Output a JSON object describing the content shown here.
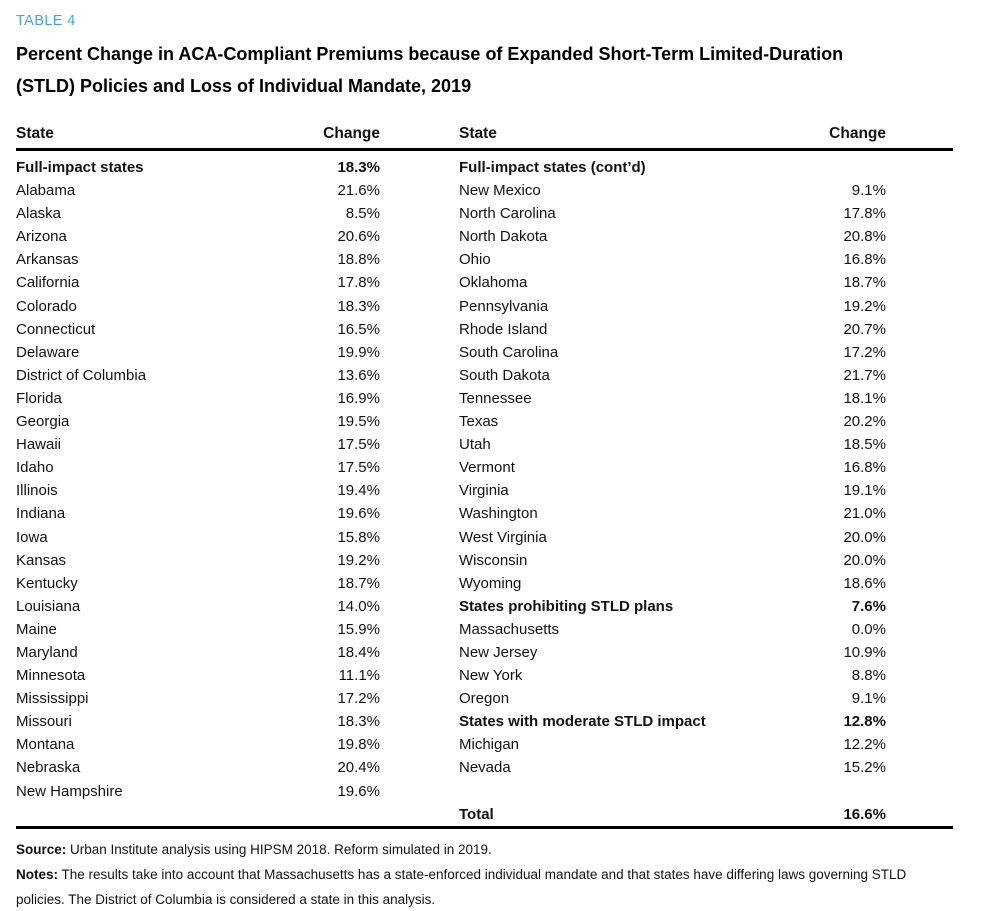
{
  "header": {
    "table_label": "TABLE 4",
    "title_line1": "Percent Change in ACA-Compliant Premiums because of Expanded Short-Term Limited-Duration",
    "title_line2": "(STLD) Policies and Loss of Individual Mandate, 2019",
    "accent_color": "#46a5d8"
  },
  "table": {
    "columns": {
      "state": "State",
      "change": "Change"
    },
    "left_rows": [
      {
        "state": "Full-impact states",
        "change": "18.3%",
        "bold": true
      },
      {
        "state": "Alabama",
        "change": "21.6%",
        "bold": false
      },
      {
        "state": "Alaska",
        "change": "8.5%",
        "bold": false
      },
      {
        "state": "Arizona",
        "change": "20.6%",
        "bold": false
      },
      {
        "state": "Arkansas",
        "change": "18.8%",
        "bold": false
      },
      {
        "state": "California",
        "change": "17.8%",
        "bold": false
      },
      {
        "state": "Colorado",
        "change": "18.3%",
        "bold": false
      },
      {
        "state": "Connecticut",
        "change": "16.5%",
        "bold": false
      },
      {
        "state": "Delaware",
        "change": "19.9%",
        "bold": false
      },
      {
        "state": "District of Columbia",
        "change": "13.6%",
        "bold": false
      },
      {
        "state": "Florida",
        "change": "16.9%",
        "bold": false
      },
      {
        "state": "Georgia",
        "change": "19.5%",
        "bold": false
      },
      {
        "state": "Hawaii",
        "change": "17.5%",
        "bold": false
      },
      {
        "state": "Idaho",
        "change": "17.5%",
        "bold": false
      },
      {
        "state": "Illinois",
        "change": "19.4%",
        "bold": false
      },
      {
        "state": "Indiana",
        "change": "19.6%",
        "bold": false
      },
      {
        "state": "Iowa",
        "change": "15.8%",
        "bold": false
      },
      {
        "state": "Kansas",
        "change": "19.2%",
        "bold": false
      },
      {
        "state": "Kentucky",
        "change": "18.7%",
        "bold": false
      },
      {
        "state": "Louisiana",
        "change": "14.0%",
        "bold": false
      },
      {
        "state": "Maine",
        "change": "15.9%",
        "bold": false
      },
      {
        "state": "Maryland",
        "change": "18.4%",
        "bold": false
      },
      {
        "state": "Minnesota",
        "change": "11.1%",
        "bold": false
      },
      {
        "state": "Mississippi",
        "change": "17.2%",
        "bold": false
      },
      {
        "state": "Missouri",
        "change": "18.3%",
        "bold": false
      },
      {
        "state": "Montana",
        "change": "19.8%",
        "bold": false
      },
      {
        "state": "Nebraska",
        "change": "20.4%",
        "bold": false
      },
      {
        "state": "New Hampshire",
        "change": "19.6%",
        "bold": false
      }
    ],
    "right_rows": [
      {
        "state": "Full-impact states (cont’d)",
        "change": "",
        "bold": true
      },
      {
        "state": "New Mexico",
        "change": "9.1%",
        "bold": false
      },
      {
        "state": "North Carolina",
        "change": "17.8%",
        "bold": false
      },
      {
        "state": "North Dakota",
        "change": "20.8%",
        "bold": false
      },
      {
        "state": "Ohio",
        "change": "16.8%",
        "bold": false
      },
      {
        "state": "Oklahoma",
        "change": "18.7%",
        "bold": false
      },
      {
        "state": "Pennsylvania",
        "change": "19.2%",
        "bold": false
      },
      {
        "state": "Rhode Island",
        "change": "20.7%",
        "bold": false
      },
      {
        "state": "South Carolina",
        "change": "17.2%",
        "bold": false
      },
      {
        "state": "South Dakota",
        "change": "21.7%",
        "bold": false
      },
      {
        "state": "Tennessee",
        "change": "18.1%",
        "bold": false
      },
      {
        "state": "Texas",
        "change": "20.2%",
        "bold": false
      },
      {
        "state": "Utah",
        "change": "18.5%",
        "bold": false
      },
      {
        "state": "Vermont",
        "change": "16.8%",
        "bold": false
      },
      {
        "state": "Virginia",
        "change": "19.1%",
        "bold": false
      },
      {
        "state": "Washington",
        "change": "21.0%",
        "bold": false
      },
      {
        "state": "West Virginia",
        "change": "20.0%",
        "bold": false
      },
      {
        "state": "Wisconsin",
        "change": "20.0%",
        "bold": false
      },
      {
        "state": "Wyoming",
        "change": "18.6%",
        "bold": false
      },
      {
        "state": "States prohibiting STLD plans",
        "change": "7.6%",
        "bold": true
      },
      {
        "state": "Massachusetts",
        "change": "0.0%",
        "bold": false
      },
      {
        "state": "New Jersey",
        "change": "10.9%",
        "bold": false
      },
      {
        "state": "New York",
        "change": "8.8%",
        "bold": false
      },
      {
        "state": "Oregon",
        "change": "9.1%",
        "bold": false
      },
      {
        "state": "States with moderate STLD impact",
        "change": "12.8%",
        "bold": true
      },
      {
        "state": "Michigan",
        "change": "12.2%",
        "bold": false
      },
      {
        "state": "Nevada",
        "change": "15.2%",
        "bold": false
      }
    ],
    "total_row": {
      "state": "Total",
      "change": "16.6%",
      "bold": true
    }
  },
  "footer": {
    "source_label": "Source:",
    "source_text": "Urban Institute analysis using HIPSM 2018. Reform simulated in 2019.",
    "notes_label": "Notes:",
    "notes_text": "The results take into account that Massachusetts has a state-enforced individual mandate and that states have differing laws governing STLD policies. The District of Columbia is considered a state in this analysis."
  }
}
